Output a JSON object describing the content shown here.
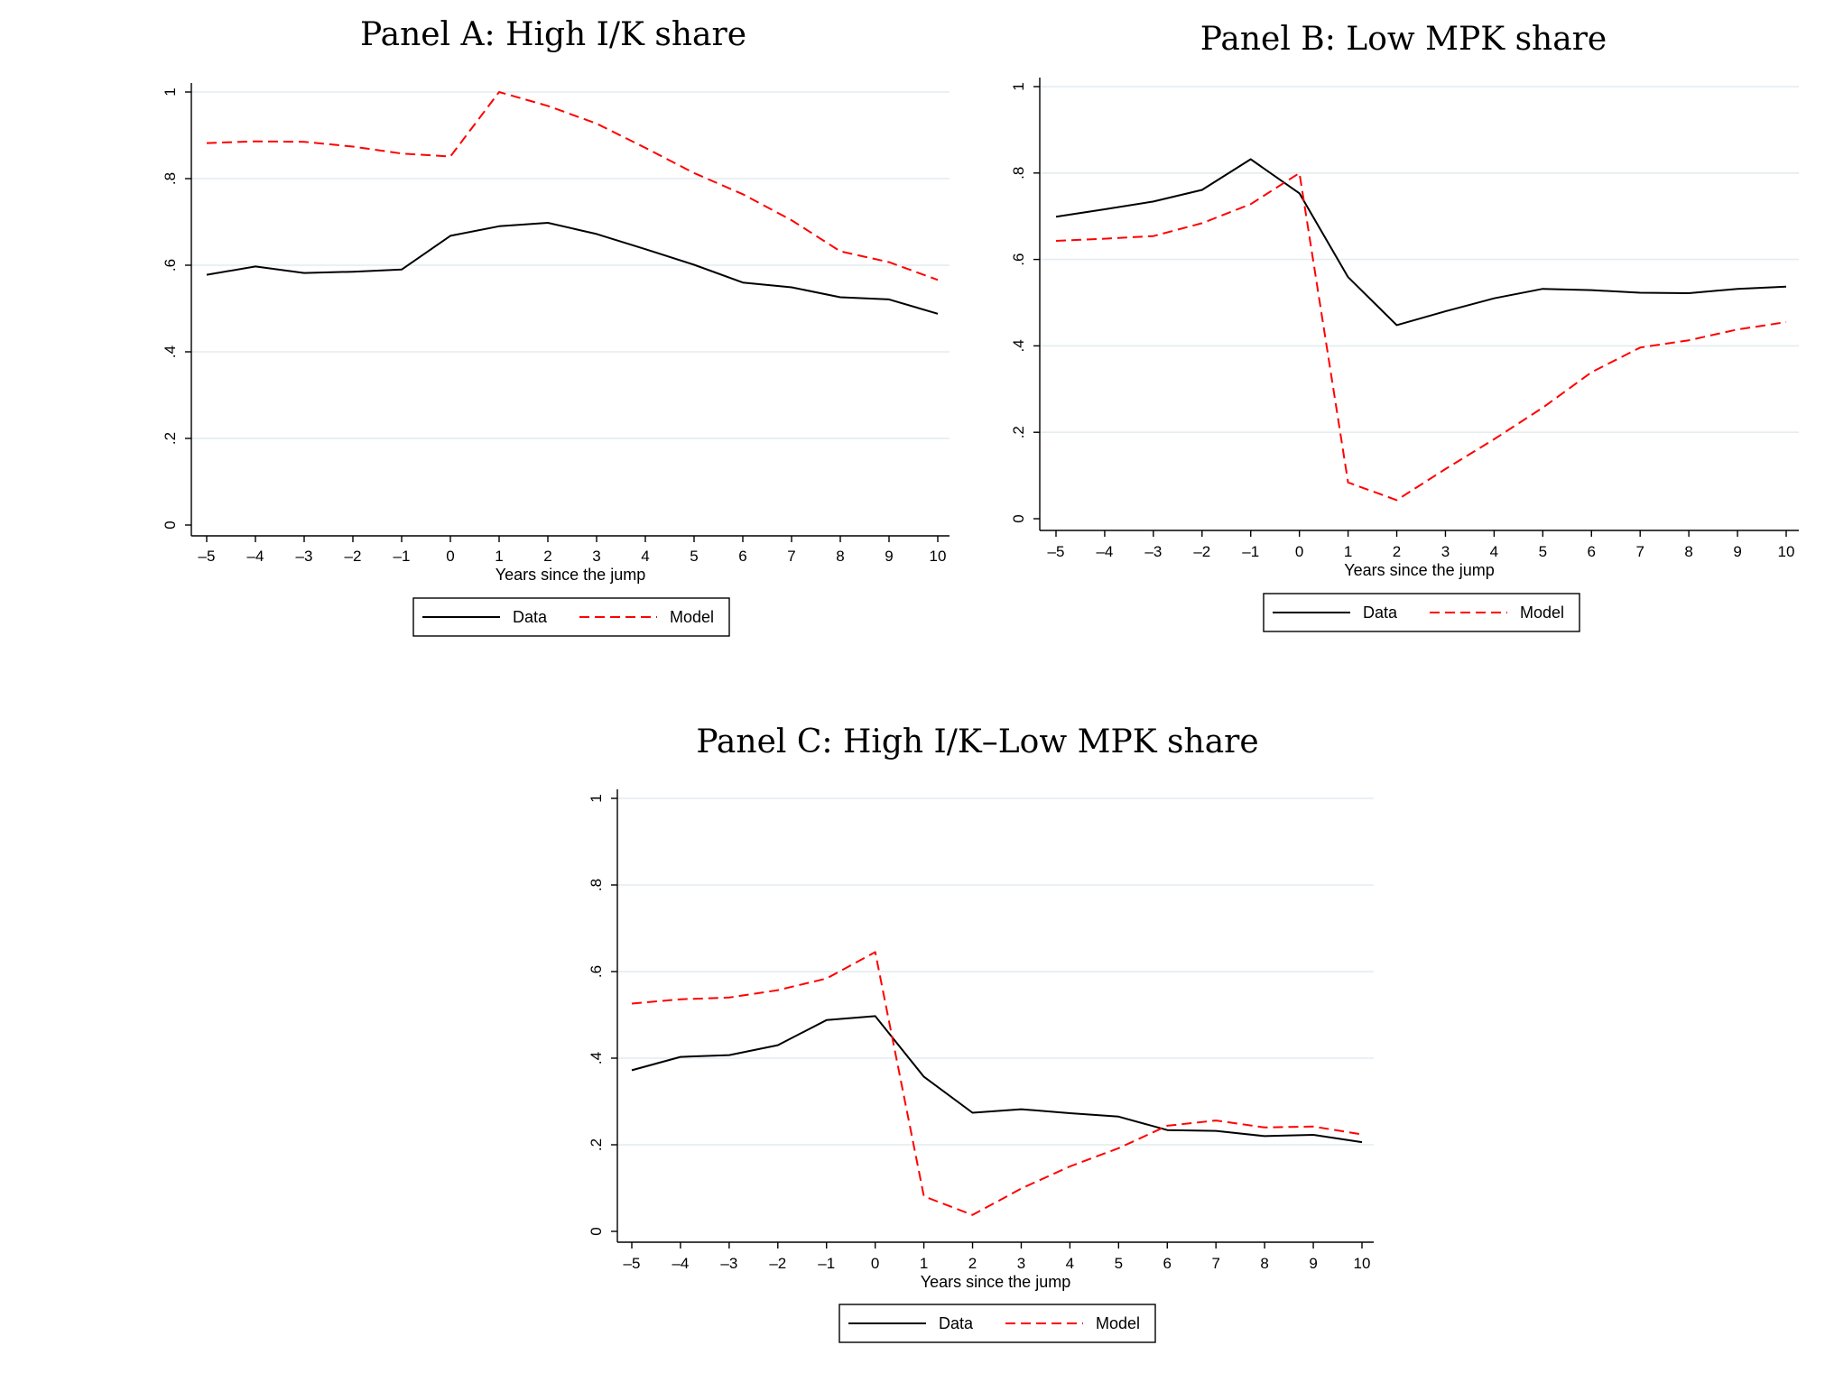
{
  "chart_data": [
    {
      "type": "line",
      "title": "Panel A: High I/K share",
      "xlabel": "Years since the jump",
      "ylabel": "",
      "x": [
        -5,
        -4,
        -3,
        -2,
        -1,
        0,
        1,
        2,
        3,
        4,
        5,
        6,
        7,
        8,
        9,
        10
      ],
      "x_tick_labels": [
        "–5",
        "–4",
        "–3",
        "–2",
        "–1",
        "0",
        "1",
        "2",
        "3",
        "4",
        "5",
        "6",
        "7",
        "8",
        "9",
        "10"
      ],
      "y_ticks": [
        0,
        0.2,
        0.4,
        0.6,
        0.8,
        1
      ],
      "y_tick_labels": [
        "0",
        ".2",
        ".4",
        ".6",
        ".8",
        "1"
      ],
      "ylim": [
        0,
        1
      ],
      "grid": true,
      "legend_position": "bottom",
      "series": [
        {
          "name": "Data",
          "color": "#000000",
          "dash": "solid",
          "values": [
            0.578,
            0.597,
            0.582,
            0.585,
            0.59,
            0.668,
            0.69,
            0.698,
            0.672,
            0.637,
            0.601,
            0.56,
            0.549,
            0.526,
            0.521,
            0.488
          ]
        },
        {
          "name": "Model",
          "color": "#ff0000",
          "dash": "dashed",
          "values": [
            0.882,
            0.886,
            0.885,
            0.874,
            0.858,
            0.851,
            1.0,
            0.968,
            0.927,
            0.871,
            0.813,
            0.764,
            0.704,
            0.632,
            0.607,
            0.566
          ]
        }
      ]
    },
    {
      "type": "line",
      "title": "Panel B: Low MPK share",
      "xlabel": "Years since the jump",
      "ylabel": "",
      "x": [
        -5,
        -4,
        -3,
        -2,
        -1,
        0,
        1,
        2,
        3,
        4,
        5,
        6,
        7,
        8,
        9,
        10
      ],
      "x_tick_labels": [
        "–5",
        "–4",
        "–3",
        "–2",
        "–1",
        "0",
        "1",
        "2",
        "3",
        "4",
        "5",
        "6",
        "7",
        "8",
        "9",
        "10"
      ],
      "y_ticks": [
        0,
        0.2,
        0.4,
        0.6,
        0.8,
        1
      ],
      "y_tick_labels": [
        "0",
        ".2",
        ".4",
        ".6",
        ".8",
        "1"
      ],
      "ylim": [
        0,
        1
      ],
      "grid": true,
      "legend_position": "bottom",
      "series": [
        {
          "name": "Data",
          "color": "#000000",
          "dash": "solid",
          "values": [
            0.699,
            0.716,
            0.734,
            0.761,
            0.832,
            0.753,
            0.559,
            0.448,
            0.48,
            0.51,
            0.532,
            0.529,
            0.523,
            0.522,
            0.532,
            0.537
          ]
        },
        {
          "name": "Model",
          "color": "#ff0000",
          "dash": "dashed",
          "values": [
            0.643,
            0.648,
            0.654,
            0.684,
            0.728,
            0.8,
            0.084,
            0.043,
            0.115,
            0.184,
            0.257,
            0.339,
            0.396,
            0.413,
            0.438,
            0.455
          ]
        }
      ]
    },
    {
      "type": "line",
      "title": "Panel C: High I/K–Low MPK share",
      "xlabel": "Years since the jump",
      "ylabel": "",
      "x": [
        -5,
        -4,
        -3,
        -2,
        -1,
        0,
        1,
        2,
        3,
        4,
        5,
        6,
        7,
        8,
        9,
        10
      ],
      "x_tick_labels": [
        "–5",
        "–4",
        "–3",
        "–2",
        "–1",
        "0",
        "1",
        "2",
        "3",
        "4",
        "5",
        "6",
        "7",
        "8",
        "9",
        "10"
      ],
      "y_ticks": [
        0,
        0.2,
        0.4,
        0.6,
        0.8,
        1
      ],
      "y_tick_labels": [
        "0",
        ".2",
        ".4",
        ".6",
        ".8",
        "1"
      ],
      "ylim": [
        0,
        1
      ],
      "grid": true,
      "legend_position": "bottom",
      "series": [
        {
          "name": "Data",
          "color": "#000000",
          "dash": "solid",
          "values": [
            0.372,
            0.403,
            0.407,
            0.43,
            0.488,
            0.497,
            0.357,
            0.274,
            0.282,
            0.273,
            0.265,
            0.234,
            0.232,
            0.22,
            0.223,
            0.206
          ]
        },
        {
          "name": "Model",
          "color": "#ff0000",
          "dash": "dashed",
          "values": [
            0.526,
            0.536,
            0.54,
            0.557,
            0.584,
            0.645,
            0.081,
            0.038,
            0.099,
            0.15,
            0.192,
            0.244,
            0.256,
            0.24,
            0.242,
            0.224
          ]
        }
      ]
    }
  ]
}
